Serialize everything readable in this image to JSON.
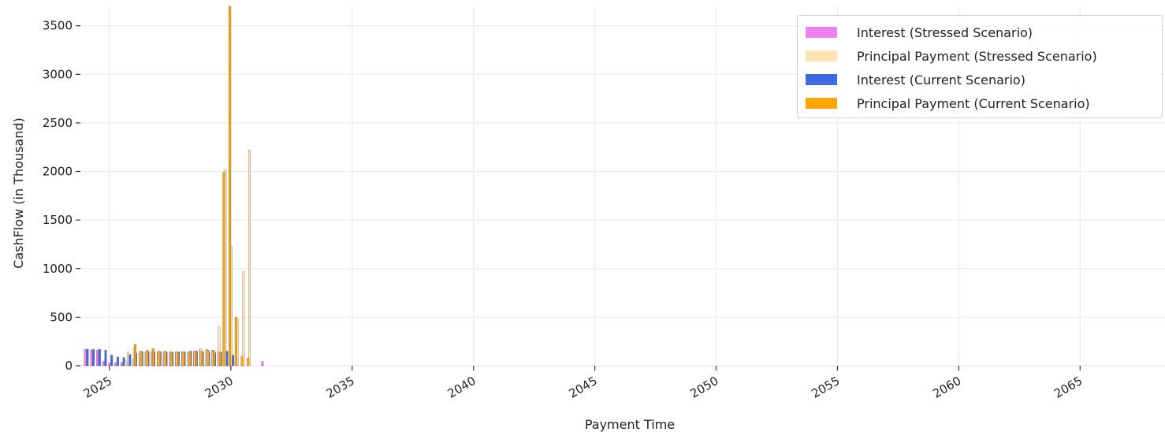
{
  "chart_data": {
    "type": "bar",
    "title": "",
    "xlabel": "Payment Time",
    "ylabel": "CashFlow (in Thousand)",
    "ylim": [
      0,
      3700
    ],
    "xlim": [
      2023.8,
      2068.5
    ],
    "yticks": [
      0,
      500,
      1000,
      1500,
      2000,
      2500,
      3000,
      3500
    ],
    "xticks": [
      2025,
      2030,
      2035,
      2040,
      2045,
      2050,
      2055,
      2060,
      2065
    ],
    "grid": true,
    "legend_position": "top-right",
    "series": [
      {
        "name": "Interest (Stressed Scenario)",
        "color": "#ee82ee",
        "x": [
          2024.0,
          2024.25,
          2024.5,
          2024.75,
          2025.0,
          2025.25,
          2025.5,
          2025.75,
          2026.0,
          2026.25,
          2026.5,
          2026.75,
          2027.0,
          2027.25,
          2027.5,
          2027.75,
          2028.0,
          2028.25,
          2028.5,
          2028.75,
          2029.0,
          2029.25,
          2029.5,
          2029.75,
          2030.0,
          2030.25,
          2030.5,
          2031.3
        ],
        "values": [
          170,
          165,
          160,
          45,
          30,
          30,
          35,
          60,
          70,
          130,
          140,
          145,
          145,
          145,
          140,
          140,
          145,
          140,
          150,
          170,
          165,
          160,
          150,
          140,
          70,
          60,
          70,
          45
        ]
      },
      {
        "name": "Principal Payment (Stressed Scenario)",
        "color": "#ffe4b5",
        "x": [
          2025.75,
          2026.0,
          2026.25,
          2026.5,
          2026.75,
          2027.0,
          2027.25,
          2027.5,
          2027.75,
          2028.0,
          2028.25,
          2028.5,
          2028.75,
          2029.0,
          2029.25,
          2029.5,
          2029.75,
          2030.0,
          2030.25,
          2030.5,
          2030.75
        ],
        "values": [
          140,
          180,
          150,
          150,
          175,
          150,
          150,
          145,
          145,
          140,
          140,
          145,
          175,
          170,
          160,
          400,
          2020,
          1230,
          480,
          970,
          2220
        ]
      },
      {
        "name": "Interest (Current Scenario)",
        "color": "#4169e1",
        "x": [
          2024.05,
          2024.3,
          2024.55,
          2024.8,
          2025.05,
          2025.3,
          2025.55,
          2025.8,
          2026.05,
          2026.3,
          2026.55,
          2026.8,
          2027.05,
          2027.3,
          2027.55,
          2027.8,
          2028.05,
          2028.3,
          2028.55,
          2028.8,
          2029.05,
          2029.3,
          2029.55,
          2029.8,
          2030.05
        ],
        "values": [
          170,
          170,
          170,
          160,
          110,
          90,
          85,
          115,
          130,
          145,
          145,
          140,
          140,
          140,
          140,
          145,
          145,
          150,
          150,
          145,
          140,
          135,
          140,
          150,
          110
        ]
      },
      {
        "name": "Principal Payment (Current Scenario)",
        "color": "#ffa500",
        "x": [
          2026.0,
          2026.25,
          2026.5,
          2026.75,
          2027.0,
          2027.25,
          2027.5,
          2027.75,
          2028.0,
          2028.25,
          2028.5,
          2028.75,
          2029.0,
          2029.25,
          2029.5,
          2029.65,
          2029.9,
          2030.15,
          2030.4,
          2030.65
        ],
        "values": [
          220,
          150,
          160,
          175,
          150,
          150,
          140,
          145,
          145,
          140,
          145,
          150,
          160,
          150,
          140,
          1990,
          3700,
          500,
          100,
          80
        ]
      }
    ]
  }
}
